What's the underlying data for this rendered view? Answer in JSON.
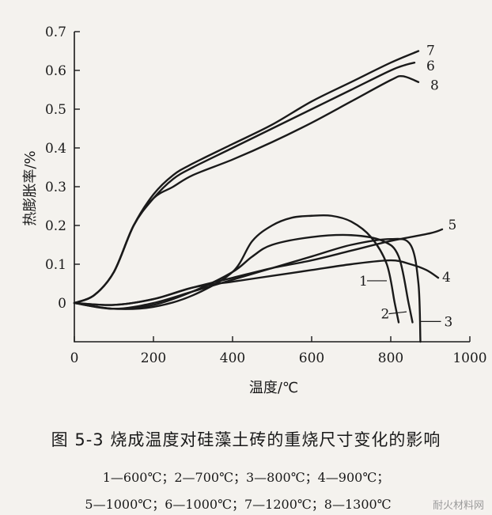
{
  "figure": {
    "title": "图 5-3   烧成温度对硅藻土砖的重烧尺寸变化的影响",
    "legend_line_1": "1—600℃；2—700℃；3—800℃；4—900℃；",
    "legend_line_2": "5—1000℃；6—1000℃；7—1200℃；8—1300℃",
    "watermark": "耐火材料网"
  },
  "chart_data": {
    "type": "line",
    "xlabel": "温度/℃",
    "ylabel": "热膨胀率/%",
    "xlim": [
      0,
      1000
    ],
    "ylim": [
      -0.1,
      0.7
    ],
    "xticks": [
      0,
      200,
      400,
      600,
      800,
      1000
    ],
    "yticks": [
      0,
      0.1,
      0.2,
      0.3,
      0.4,
      0.5,
      0.6,
      0.7
    ],
    "ytick_labels": [
      "0",
      "0.1",
      "0.2",
      "0.3",
      "0.4",
      "0.5",
      "0.6",
      "0.7"
    ],
    "grid": false,
    "series": [
      {
        "name": "1",
        "points": [
          [
            0,
            0
          ],
          [
            100,
            -0.015
          ],
          [
            200,
            -0.01
          ],
          [
            300,
            0.02
          ],
          [
            400,
            0.08
          ],
          [
            450,
            0.16
          ],
          [
            500,
            0.2
          ],
          [
            550,
            0.22
          ],
          [
            600,
            0.225
          ],
          [
            650,
            0.225
          ],
          [
            700,
            0.21
          ],
          [
            750,
            0.17
          ],
          [
            790,
            0.1
          ],
          [
            810,
            0.0
          ],
          [
            820,
            -0.05
          ]
        ]
      },
      {
        "name": "2",
        "points": [
          [
            0,
            0
          ],
          [
            100,
            -0.015
          ],
          [
            200,
            -0.005
          ],
          [
            300,
            0.03
          ],
          [
            400,
            0.08
          ],
          [
            450,
            0.12
          ],
          [
            500,
            0.15
          ],
          [
            600,
            0.17
          ],
          [
            700,
            0.175
          ],
          [
            780,
            0.16
          ],
          [
            820,
            0.12
          ],
          [
            845,
            0.0
          ],
          [
            855,
            -0.05
          ]
        ]
      },
      {
        "name": "3",
        "points": [
          [
            0,
            0
          ],
          [
            100,
            -0.015
          ],
          [
            200,
            0.0
          ],
          [
            300,
            0.03
          ],
          [
            400,
            0.06
          ],
          [
            500,
            0.09
          ],
          [
            600,
            0.12
          ],
          [
            700,
            0.15
          ],
          [
            800,
            0.165
          ],
          [
            850,
            0.15
          ],
          [
            870,
            0.05
          ],
          [
            875,
            -0.1
          ]
        ]
      },
      {
        "name": "4",
        "points": [
          [
            0,
            0
          ],
          [
            100,
            -0.005
          ],
          [
            200,
            0.01
          ],
          [
            300,
            0.04
          ],
          [
            400,
            0.055
          ],
          [
            500,
            0.07
          ],
          [
            600,
            0.085
          ],
          [
            700,
            0.1
          ],
          [
            800,
            0.11
          ],
          [
            850,
            0.1
          ],
          [
            890,
            0.085
          ],
          [
            920,
            0.065
          ]
        ]
      },
      {
        "name": "5",
        "points": [
          [
            0,
            0
          ],
          [
            100,
            -0.005
          ],
          [
            200,
            0.01
          ],
          [
            300,
            0.04
          ],
          [
            400,
            0.065
          ],
          [
            500,
            0.09
          ],
          [
            600,
            0.11
          ],
          [
            700,
            0.135
          ],
          [
            800,
            0.16
          ],
          [
            900,
            0.18
          ],
          [
            930,
            0.19
          ]
        ]
      },
      {
        "name": "6",
        "points": [
          [
            0,
            0
          ],
          [
            50,
            0.02
          ],
          [
            100,
            0.08
          ],
          [
            150,
            0.2
          ],
          [
            200,
            0.27
          ],
          [
            250,
            0.32
          ],
          [
            300,
            0.35
          ],
          [
            400,
            0.4
          ],
          [
            500,
            0.45
          ],
          [
            600,
            0.5
          ],
          [
            700,
            0.55
          ],
          [
            800,
            0.6
          ],
          [
            840,
            0.615
          ],
          [
            860,
            0.62
          ]
        ]
      },
      {
        "name": "7",
        "points": [
          [
            0,
            0
          ],
          [
            50,
            0.02
          ],
          [
            100,
            0.08
          ],
          [
            150,
            0.2
          ],
          [
            200,
            0.28
          ],
          [
            250,
            0.33
          ],
          [
            300,
            0.36
          ],
          [
            400,
            0.41
          ],
          [
            500,
            0.46
          ],
          [
            600,
            0.52
          ],
          [
            700,
            0.57
          ],
          [
            800,
            0.62
          ],
          [
            870,
            0.65
          ]
        ]
      },
      {
        "name": "8",
        "points": [
          [
            0,
            0
          ],
          [
            50,
            0.02
          ],
          [
            100,
            0.08
          ],
          [
            150,
            0.2
          ],
          [
            200,
            0.27
          ],
          [
            250,
            0.3
          ],
          [
            300,
            0.33
          ],
          [
            400,
            0.37
          ],
          [
            500,
            0.415
          ],
          [
            600,
            0.465
          ],
          [
            700,
            0.52
          ],
          [
            800,
            0.575
          ],
          [
            830,
            0.585
          ],
          [
            870,
            0.57
          ]
        ]
      }
    ],
    "labels": [
      {
        "text": "1",
        "x": 720,
        "y": 0.045,
        "anchor_x": 790,
        "anchor_y": 0.045
      },
      {
        "text": "2",
        "x": 775,
        "y": -0.04,
        "anchor_x": 840,
        "anchor_y": -0.035
      },
      {
        "text": "3",
        "x": 935,
        "y": -0.06,
        "anchor_x": 876,
        "anchor_y": -0.06
      },
      {
        "text": "4",
        "x": 930,
        "y": 0.055
      },
      {
        "text": "5",
        "x": 945,
        "y": 0.19
      },
      {
        "text": "6",
        "x": 890,
        "y": 0.6
      },
      {
        "text": "7",
        "x": 890,
        "y": 0.64
      },
      {
        "text": "8",
        "x": 900,
        "y": 0.55
      }
    ]
  }
}
